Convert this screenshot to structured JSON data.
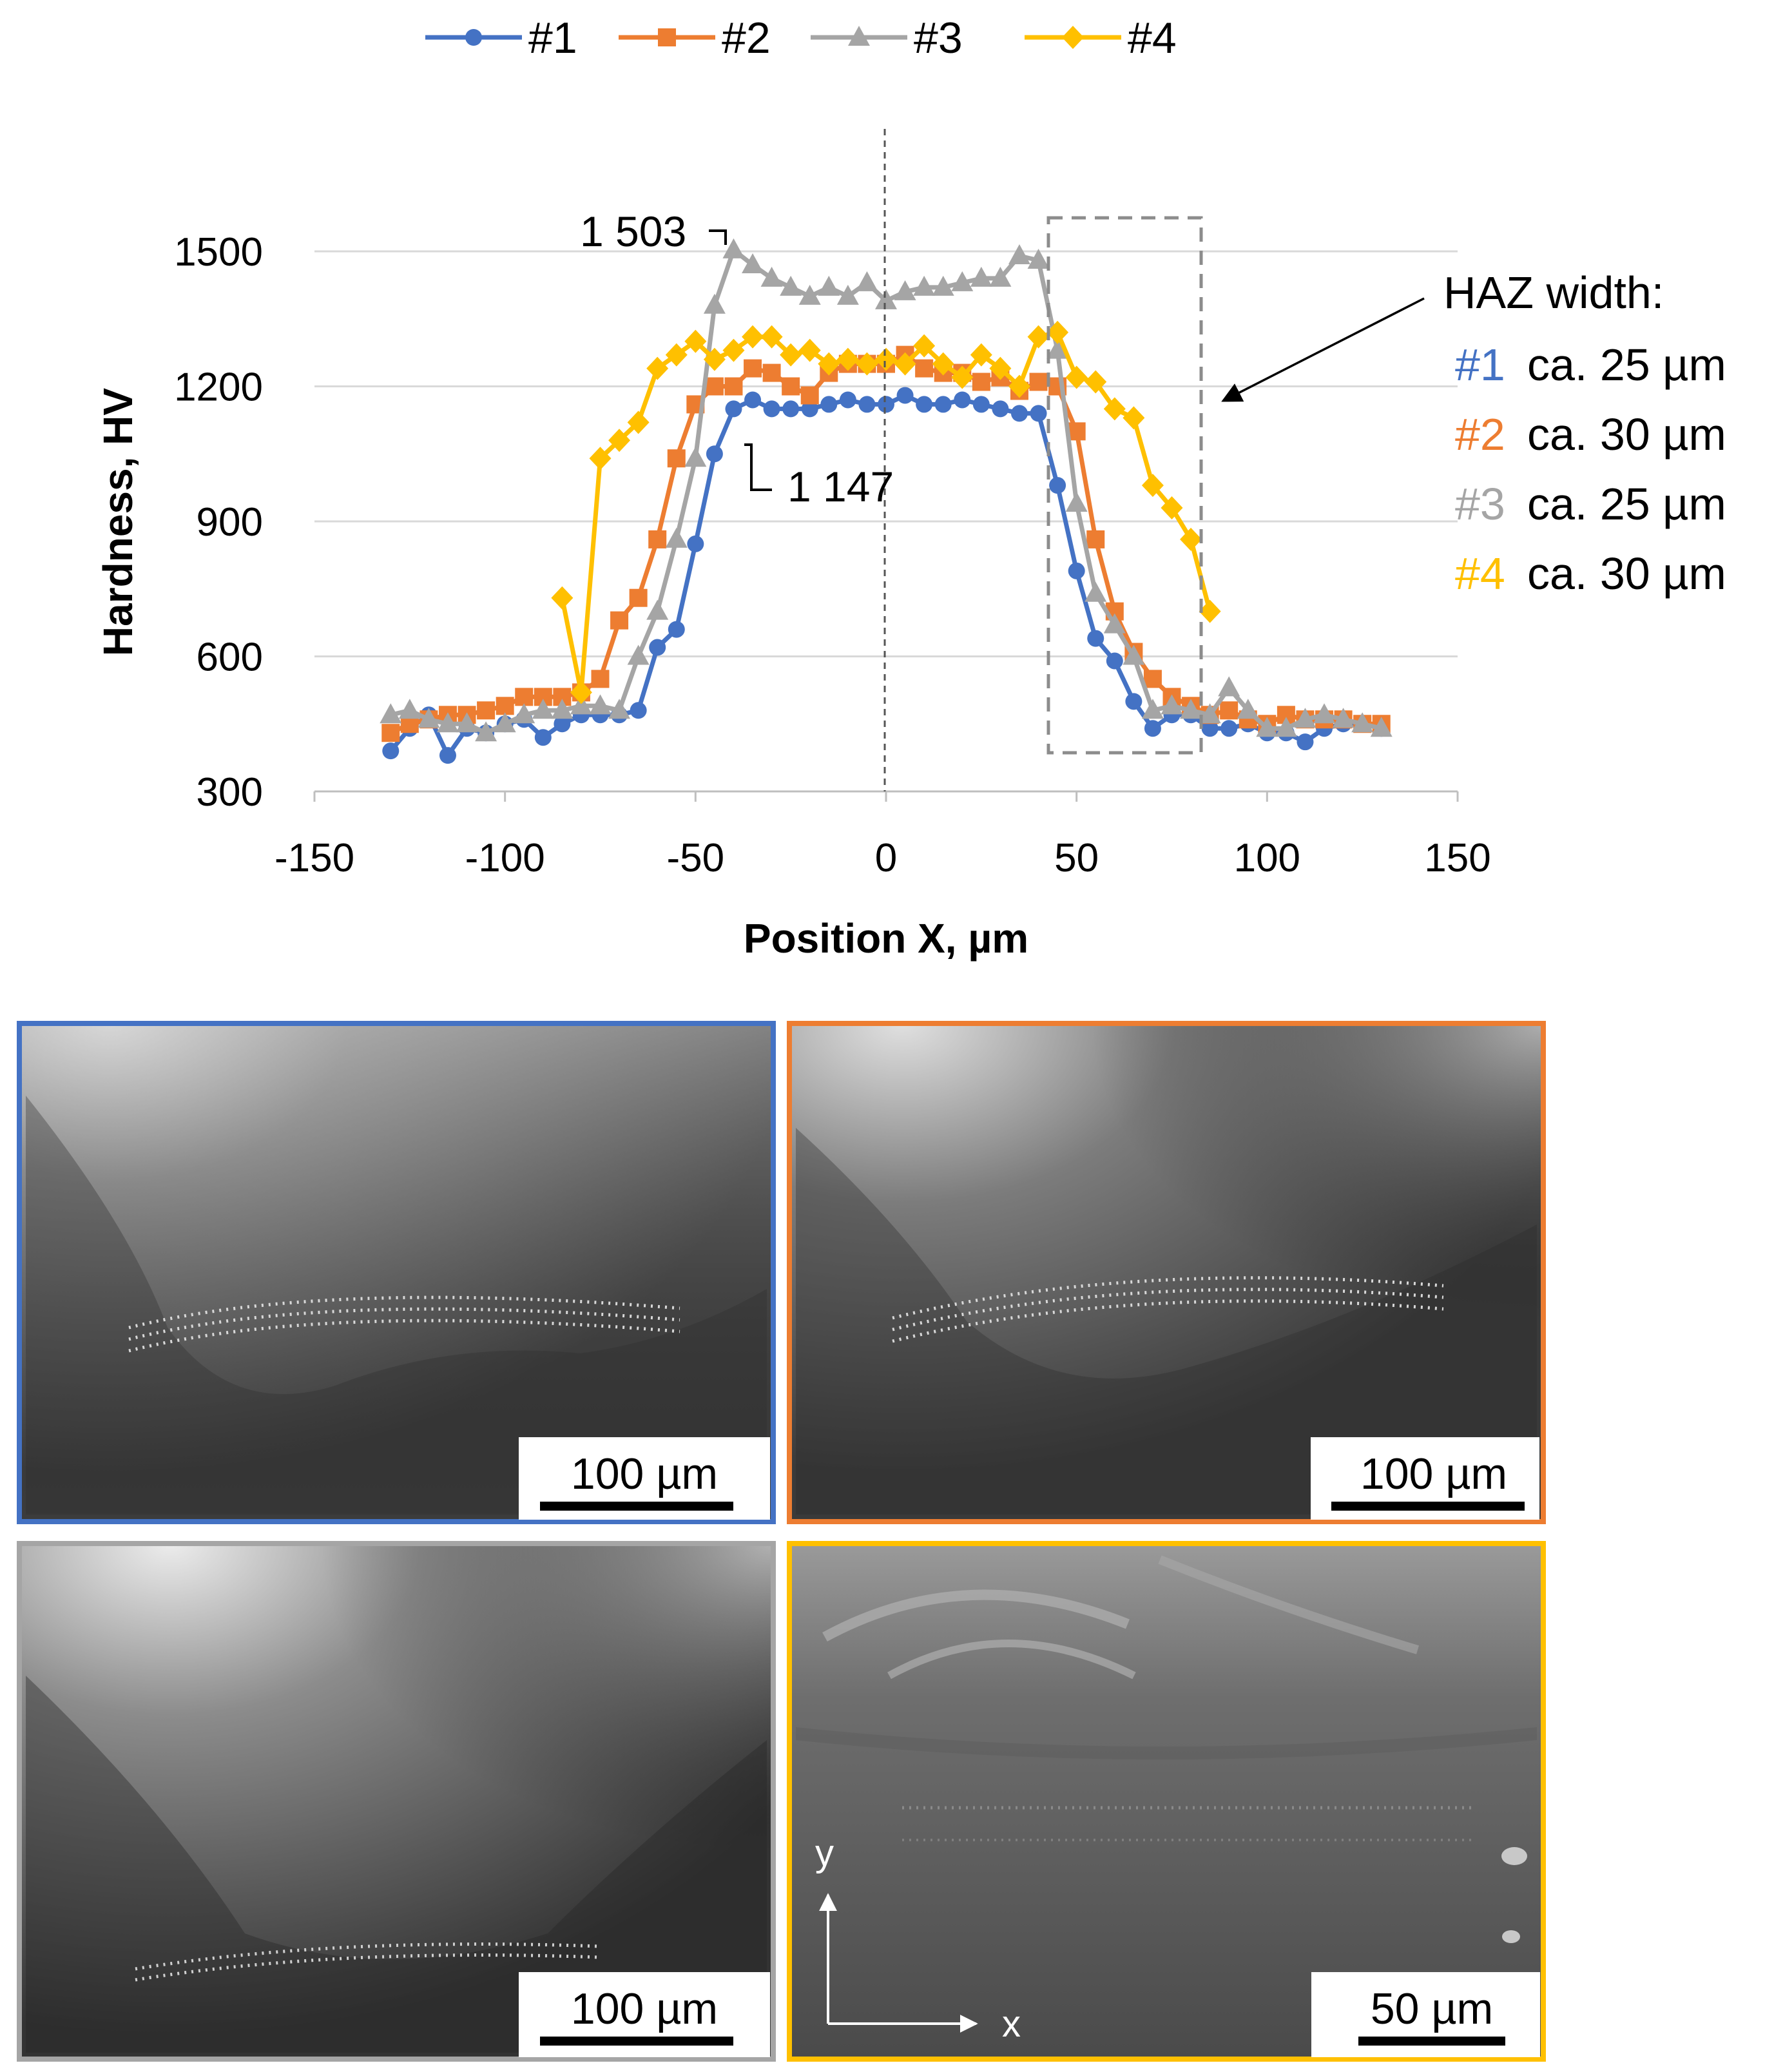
{
  "chart_data": {
    "type": "line",
    "xlabel": "Position X, µm",
    "ylabel": "Hardness, HV",
    "xlim": [
      -150,
      150
    ],
    "ylim": [
      300,
      1550
    ],
    "xticks": [
      "-150",
      "-100",
      "-50",
      "0",
      "50",
      "100",
      "150"
    ],
    "yticks": [
      "300",
      "600",
      "900",
      "1200",
      "1500"
    ],
    "legend_position": "top",
    "grid": "horizontal",
    "series": [
      {
        "name": "#1",
        "color": "#4472C4",
        "marker": "circle",
        "x": [
          -130,
          -125,
          -120,
          -115,
          -110,
          -105,
          -100,
          -95,
          -90,
          -85,
          -80,
          -75,
          -70,
          -65,
          -60,
          -55,
          -50,
          -45,
          -40,
          -35,
          -30,
          -25,
          -20,
          -15,
          -10,
          -5,
          0,
          5,
          10,
          15,
          20,
          25,
          30,
          35,
          40,
          45,
          50,
          55,
          60,
          65,
          70,
          75,
          80,
          85,
          90,
          95,
          100,
          105,
          110,
          115,
          120,
          125,
          130
        ],
        "y": [
          390,
          440,
          470,
          380,
          440,
          430,
          450,
          460,
          420,
          450,
          470,
          470,
          470,
          480,
          620,
          660,
          850,
          1050,
          1150,
          1170,
          1150,
          1150,
          1150,
          1160,
          1170,
          1160,
          1160,
          1180,
          1160,
          1160,
          1170,
          1160,
          1150,
          1140,
          1140,
          980,
          790,
          640,
          590,
          500,
          440,
          470,
          470,
          440,
          440,
          450,
          430,
          430,
          410,
          440,
          450,
          450,
          440
        ]
      },
      {
        "name": "#2",
        "color": "#ED7D31",
        "marker": "square",
        "x": [
          -130,
          -125,
          -120,
          -115,
          -110,
          -105,
          -100,
          -95,
          -90,
          -85,
          -80,
          -75,
          -70,
          -65,
          -60,
          -55,
          -50,
          -45,
          -40,
          -35,
          -30,
          -25,
          -20,
          -15,
          -10,
          -5,
          0,
          5,
          10,
          15,
          20,
          25,
          30,
          35,
          40,
          45,
          50,
          55,
          60,
          65,
          70,
          75,
          80,
          85,
          90,
          95,
          100,
          105,
          110,
          115,
          120,
          125,
          130
        ],
        "y": [
          430,
          450,
          460,
          470,
          470,
          480,
          490,
          510,
          510,
          510,
          520,
          550,
          680,
          730,
          860,
          1040,
          1160,
          1200,
          1200,
          1240,
          1230,
          1200,
          1180,
          1230,
          1250,
          1250,
          1250,
          1270,
          1240,
          1230,
          1230,
          1210,
          1220,
          1190,
          1210,
          1200,
          1100,
          860,
          700,
          610,
          550,
          510,
          490,
          470,
          480,
          460,
          450,
          470,
          460,
          460,
          460,
          450,
          450
        ]
      },
      {
        "name": "#3",
        "color": "#A5A5A5",
        "marker": "triangle",
        "x": [
          -130,
          -125,
          -120,
          -115,
          -110,
          -105,
          -100,
          -95,
          -90,
          -85,
          -80,
          -75,
          -70,
          -65,
          -60,
          -55,
          -50,
          -45,
          -40,
          -35,
          -30,
          -25,
          -20,
          -15,
          -10,
          -5,
          0,
          5,
          10,
          15,
          20,
          25,
          30,
          35,
          40,
          45,
          50,
          55,
          60,
          65,
          70,
          75,
          80,
          85,
          90,
          95,
          100,
          105,
          110,
          115,
          120,
          125,
          130
        ],
        "y": [
          470,
          480,
          460,
          450,
          450,
          430,
          450,
          470,
          480,
          480,
          490,
          490,
          480,
          600,
          700,
          860,
          1040,
          1380,
          1503,
          1470,
          1440,
          1420,
          1400,
          1420,
          1400,
          1430,
          1390,
          1410,
          1420,
          1420,
          1430,
          1440,
          1440,
          1490,
          1480,
          1280,
          940,
          740,
          670,
          600,
          480,
          490,
          480,
          470,
          530,
          480,
          440,
          440,
          460,
          470,
          460,
          450,
          440
        ]
      },
      {
        "name": "#4",
        "color": "#FFC000",
        "marker": "diamond",
        "x": [
          -85,
          -80,
          -75,
          -70,
          -65,
          -60,
          -55,
          -50,
          -45,
          -40,
          -35,
          -30,
          -25,
          -20,
          -15,
          -10,
          -5,
          0,
          5,
          10,
          15,
          20,
          25,
          30,
          35,
          40,
          45,
          50,
          55,
          60,
          65,
          70,
          75,
          80,
          85
        ],
        "y": [
          730,
          520,
          1040,
          1080,
          1120,
          1240,
          1270,
          1300,
          1260,
          1280,
          1310,
          1310,
          1270,
          1280,
          1250,
          1260,
          1250,
          1260,
          1250,
          1290,
          1250,
          1220,
          1270,
          1240,
          1200,
          1310,
          1320,
          1220,
          1210,
          1150,
          1130,
          980,
          930,
          860,
          700
        ]
      }
    ],
    "annotations": {
      "max_label": "1 503",
      "min_label": "1 147",
      "haz_title": "HAZ width:",
      "haz_entries": [
        {
          "id": "#1",
          "value": "ca. 25 µm",
          "color": "#4472C4"
        },
        {
          "id": "#2",
          "value": "ca. 30 µm",
          "color": "#ED7D31"
        },
        {
          "id": "#3",
          "value": "ca. 25 µm",
          "color": "#A5A5A5"
        },
        {
          "id": "#4",
          "value": "ca. 30 µm",
          "color": "#FFC000"
        }
      ]
    }
  },
  "micrographs": [
    {
      "id": "#1",
      "border_color": "#4472C4",
      "scale_label": "100 µm"
    },
    {
      "id": "#2",
      "border_color": "#ED7D31",
      "scale_label": "100 µm"
    },
    {
      "id": "#3",
      "border_color": "#A5A5A5",
      "scale_label": "100 µm"
    },
    {
      "id": "#4",
      "border_color": "#FFC000",
      "scale_label": "50 µm",
      "axis_x": "x",
      "axis_y": "y"
    }
  ]
}
